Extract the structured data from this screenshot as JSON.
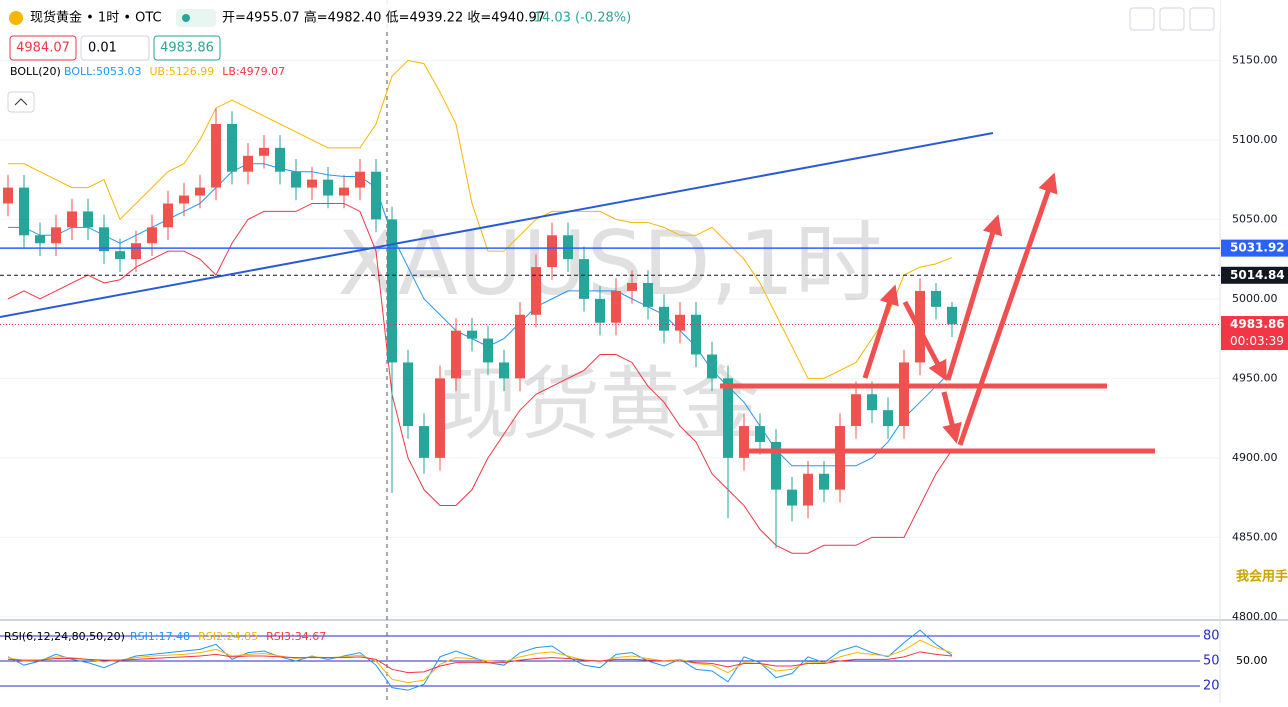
{
  "toolbar": {
    "symbol": "现货黄金 • 1时 • OTC",
    "ohlc": "开=4955.07 高=4982.40 低=4939.22 收=4940.97",
    "change": "-14.03 (-0.28%)",
    "sell": "4984.07",
    "qty": "0.01",
    "buy": "4983.86"
  },
  "overlay_text": "我会用手",
  "chart_data": [
    {
      "type": "candlestick",
      "watermark": [
        "XAUUSD,1时",
        "现货黄金"
      ],
      "indicator_label": "BOLL(20)",
      "up_color": "#ef5350",
      "down_color": "#26a69a",
      "ylim": [
        4798,
        5188
      ],
      "yticks": [
        {
          "value": 5150,
          "label": "5150.00"
        },
        {
          "value": 5100,
          "label": "5100.00"
        },
        {
          "value": 5050,
          "label": "5050.00"
        },
        {
          "value": 5000,
          "label": "5000.00"
        },
        {
          "value": 4950,
          "label": "4950.00"
        },
        {
          "value": 4900,
          "label": "4900.00"
        },
        {
          "value": 4850,
          "label": "4850.00"
        },
        {
          "value": 4800,
          "label": "4800.00"
        }
      ],
      "open": [
        5060,
        5070,
        5040,
        5035,
        5045,
        5055,
        5045,
        5030,
        5025,
        5035,
        5045,
        5060,
        5065,
        5070,
        5110,
        5080,
        5090,
        5095,
        5080,
        5070,
        5075,
        5065,
        5070,
        5080,
        5050,
        4960,
        4920,
        4900,
        4950,
        4980,
        4975,
        4960,
        4950,
        4990,
        5020,
        5040,
        5025,
        5000,
        4985,
        5005,
        5010,
        4995,
        4980,
        4990,
        4965,
        4950,
        4900,
        4920,
        4910,
        4880,
        4870,
        4890,
        4880,
        4920,
        4940,
        4930,
        4920,
        4960,
        5005,
        4995
      ],
      "high": [
        5078,
        5078,
        5048,
        5053,
        5063,
        5063,
        5053,
        5038,
        5043,
        5053,
        5068,
        5073,
        5078,
        5120,
        5118,
        5098,
        5103,
        5103,
        5088,
        5083,
        5083,
        5078,
        5088,
        5088,
        5058,
        4968,
        4928,
        4958,
        4988,
        4988,
        4983,
        4968,
        4998,
        5028,
        5048,
        5048,
        5033,
        5008,
        5013,
        5018,
        5018,
        5003,
        4998,
        4998,
        4973,
        4958,
        4928,
        4928,
        4918,
        4888,
        4898,
        4898,
        4928,
        4948,
        4948,
        4938,
        4968,
        5013,
        5010,
        4998
      ],
      "low": [
        5052,
        5032,
        5027,
        5027,
        5037,
        5037,
        5022,
        5017,
        5017,
        5027,
        5037,
        5052,
        5057,
        5062,
        5072,
        5072,
        5082,
        5072,
        5062,
        5062,
        5057,
        5057,
        5062,
        5042,
        4878,
        4912,
        4890,
        4892,
        4942,
        4967,
        4952,
        4942,
        4942,
        4982,
        5012,
        5017,
        4992,
        4977,
        4977,
        4997,
        4987,
        4972,
        4972,
        4957,
        4942,
        4862,
        4892,
        4902,
        4843,
        4860,
        4862,
        4872,
        4872,
        4912,
        4922,
        4912,
        4912,
        4952,
        4987,
        4976
      ],
      "close": [
        5070,
        5040,
        5035,
        5045,
        5055,
        5045,
        5030,
        5025,
        5035,
        5045,
        5060,
        5065,
        5070,
        5110,
        5080,
        5090,
        5095,
        5080,
        5070,
        5075,
        5065,
        5070,
        5080,
        5050,
        4960,
        4920,
        4900,
        4950,
        4980,
        4975,
        4960,
        4950,
        4990,
        5020,
        5040,
        5025,
        5000,
        4985,
        5005,
        5010,
        4995,
        4980,
        4990,
        4965,
        4950,
        4900,
        4920,
        4910,
        4880,
        4870,
        4890,
        4880,
        4920,
        4940,
        4930,
        4920,
        4960,
        5005,
        4995,
        4984
      ],
      "series": [
        {
          "name": "BOLL:5053.03",
          "color": "#2196f3",
          "values": [
            5045,
            5045,
            5040,
            5040,
            5045,
            5045,
            5040,
            5035,
            5040,
            5045,
            5050,
            5055,
            5060,
            5070,
            5080,
            5085,
            5085,
            5082,
            5080,
            5080,
            5078,
            5077,
            5077,
            5070,
            5040,
            5020,
            5000,
            4990,
            4980,
            4975,
            4970,
            4975,
            4985,
            4995,
            5000,
            5005,
            5005,
            5005,
            5005,
            5000,
            4995,
            4990,
            4980,
            4970,
            4955,
            4945,
            4935,
            4920,
            4905,
            4895,
            4895,
            4895,
            4895,
            4895,
            4900,
            4910,
            4925,
            4935,
            4945,
            4955
          ]
        },
        {
          "name": "UB:5126.99",
          "color": "#f5b800",
          "values": [
            5085,
            5085,
            5080,
            5075,
            5070,
            5070,
            5075,
            5050,
            5060,
            5070,
            5080,
            5085,
            5100,
            5120,
            5125,
            5120,
            5115,
            5110,
            5105,
            5100,
            5095,
            5095,
            5095,
            5110,
            5140,
            5150,
            5148,
            5130,
            5110,
            5060,
            5030,
            5030,
            5040,
            5050,
            5055,
            5055,
            5055,
            5055,
            5050,
            5048,
            5048,
            5045,
            5040,
            5040,
            5045,
            5035,
            5025,
            5010,
            4990,
            4970,
            4950,
            4950,
            4955,
            4960,
            4975,
            4990,
            5015,
            5020,
            5022,
            5026
          ]
        },
        {
          "name": "LB:4979.07",
          "color": "#f23645",
          "values": [
            5000,
            5005,
            5000,
            5005,
            5010,
            5015,
            5010,
            5012,
            5020,
            5025,
            5030,
            5030,
            5025,
            5015,
            5035,
            5050,
            5055,
            5055,
            5055,
            5060,
            5060,
            5060,
            5055,
            5030,
            4940,
            4900,
            4880,
            4870,
            4870,
            4880,
            4900,
            4915,
            4930,
            4940,
            4945,
            4950,
            4955,
            4965,
            4965,
            4960,
            4945,
            4935,
            4920,
            4910,
            4890,
            4880,
            4870,
            4855,
            4845,
            4840,
            4840,
            4845,
            4845,
            4845,
            4850,
            4850,
            4850,
            4870,
            4890,
            4905
          ]
        }
      ],
      "price_lines": [
        {
          "value": 5031.92,
          "color": "#2962ff"
        },
        {
          "value": 5014.84,
          "color": "#131722"
        },
        {
          "value": 4983.86,
          "color": "#f23645",
          "countdown": "00:03:39"
        }
      ]
    },
    {
      "type": "line",
      "indicator_label": "RSI(6,12,24,80,50,20)",
      "ylim": [
        9.2,
        89.6
      ],
      "yticks": [
        {
          "value": 50,
          "label": "50.00"
        }
      ],
      "levels": [
        80,
        50,
        20
      ],
      "series": [
        {
          "name": "RSI1:17.48",
          "color": "#2196f3",
          "values": [
            55,
            45,
            50,
            58,
            52,
            48,
            42,
            50,
            56,
            58,
            60,
            62,
            64,
            70,
            52,
            60,
            62,
            55,
            50,
            56,
            52,
            56,
            60,
            45,
            18,
            15,
            22,
            55,
            62,
            55,
            48,
            45,
            60,
            66,
            68,
            55,
            45,
            42,
            58,
            60,
            50,
            44,
            52,
            40,
            38,
            25,
            55,
            48,
            30,
            35,
            55,
            48,
            62,
            68,
            60,
            55,
            72,
            87,
            70,
            57
          ]
        },
        {
          "name": "RSI2:24.85",
          "color": "#f5b800",
          "values": [
            54,
            50,
            51,
            55,
            54,
            52,
            49,
            51,
            54,
            56,
            57,
            58,
            60,
            64,
            56,
            58,
            59,
            56,
            53,
            55,
            54,
            55,
            57,
            50,
            28,
            24,
            27,
            46,
            54,
            53,
            50,
            49,
            55,
            59,
            61,
            56,
            51,
            49,
            54,
            56,
            53,
            50,
            52,
            47,
            45,
            36,
            48,
            47,
            38,
            40,
            49,
            48,
            55,
            60,
            58,
            56,
            63,
            75,
            66,
            60
          ]
        },
        {
          "name": "RSI3:34.67",
          "color": "#f23645",
          "values": [
            52,
            51,
            51,
            53,
            53,
            52,
            51,
            51,
            52,
            53,
            54,
            55,
            56,
            58,
            55,
            56,
            56,
            55,
            54,
            54,
            54,
            54,
            55,
            52,
            40,
            36,
            37,
            44,
            48,
            48,
            48,
            48,
            51,
            53,
            54,
            53,
            51,
            50,
            52,
            52,
            51,
            50,
            50,
            48,
            47,
            43,
            47,
            47,
            44,
            44,
            47,
            47,
            50,
            52,
            52,
            52,
            55,
            61,
            58,
            56
          ]
        }
      ]
    }
  ]
}
